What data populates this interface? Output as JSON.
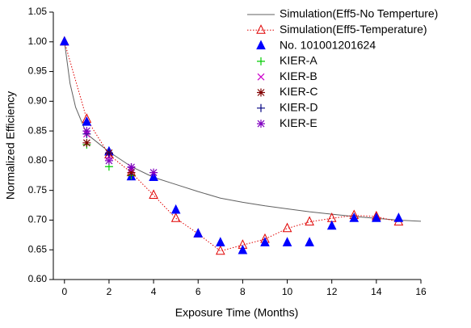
{
  "chart_data": {
    "type": "scatter",
    "x_label": "Exposure Time (Months)",
    "y_label": "Normalized Efficiency",
    "xlim": [
      -0.5,
      16
    ],
    "ylim": [
      0.6,
      1.05
    ],
    "xticks": [
      0,
      2,
      4,
      6,
      8,
      10,
      12,
      14,
      16
    ],
    "yticks": [
      {
        "value": 0.6,
        "label": "0.60"
      },
      0.65,
      {
        "value": 0.7,
        "label": "0.70"
      },
      0.75,
      {
        "value": 0.8,
        "label": "0.80"
      },
      0.85,
      {
        "value": 0.9,
        "label": "0.90"
      },
      0.95,
      {
        "value": 1.0,
        "label": "1.00"
      },
      1.05
    ],
    "legend": "top-right",
    "series": [
      {
        "name": "Simulation(Eff5-No Temperture)",
        "color": "#606060",
        "marker": "none",
        "line": "solid",
        "x": [
          0,
          0.25,
          0.5,
          1,
          2,
          3,
          4,
          5,
          6,
          7,
          8,
          9,
          10,
          11,
          12,
          13,
          14,
          15,
          16
        ],
        "values": [
          1.0,
          0.93,
          0.89,
          0.845,
          0.815,
          0.79,
          0.772,
          0.76,
          0.748,
          0.737,
          0.73,
          0.724,
          0.719,
          0.714,
          0.71,
          0.706,
          0.703,
          0.7,
          0.698
        ]
      },
      {
        "name": "Simulation(Eff5-Temperature)",
        "color": "#e00000",
        "marker": "triangle-open",
        "line": "dotted",
        "x": [
          0,
          1,
          2,
          3,
          4,
          5,
          6,
          7,
          8,
          9,
          10,
          11,
          12,
          13,
          14,
          15
        ],
        "values": [
          1.0,
          0.87,
          0.81,
          0.78,
          0.742,
          0.703,
          0.677,
          0.648,
          0.658,
          0.668,
          0.686,
          0.697,
          0.703,
          0.708,
          0.706,
          0.697
        ]
      },
      {
        "name": "No. 101001201624",
        "color": "#0000ff",
        "marker": "triangle",
        "line": "none",
        "x": [
          0,
          1,
          2,
          3,
          4,
          5,
          6,
          7,
          8,
          9,
          10,
          11,
          12,
          13,
          14,
          15
        ],
        "values": [
          1.0,
          0.865,
          0.815,
          0.773,
          0.772,
          0.717,
          0.677,
          0.662,
          0.649,
          0.662,
          0.662,
          0.662,
          0.69,
          0.703,
          0.703,
          0.703
        ]
      },
      {
        "name": "KIER-A",
        "color": "#00cc00",
        "marker": "plus",
        "line": "none",
        "x": [
          1,
          2,
          3
        ],
        "values": [
          0.827,
          0.79,
          0.775
        ]
      },
      {
        "name": "KIER-B",
        "color": "#cc00cc",
        "marker": "cross",
        "line": "none",
        "x": [
          1,
          2,
          3
        ],
        "values": [
          0.845,
          0.807,
          0.785
        ]
      },
      {
        "name": "KIER-C",
        "color": "#800000",
        "marker": "asterisk",
        "line": "none",
        "x": [
          1,
          2,
          3
        ],
        "values": [
          0.83,
          0.813,
          0.78
        ]
      },
      {
        "name": "KIER-D",
        "color": "#000080",
        "marker": "plus",
        "line": "none",
        "x": [
          1,
          2,
          3
        ],
        "values": [
          0.845,
          0.812,
          0.789
        ]
      },
      {
        "name": "KIER-E",
        "color": "#8000c0",
        "marker": "asterisk",
        "line": "none",
        "x": [
          1,
          2,
          3,
          4
        ],
        "values": [
          0.85,
          0.8,
          0.789,
          0.78
        ]
      }
    ]
  }
}
